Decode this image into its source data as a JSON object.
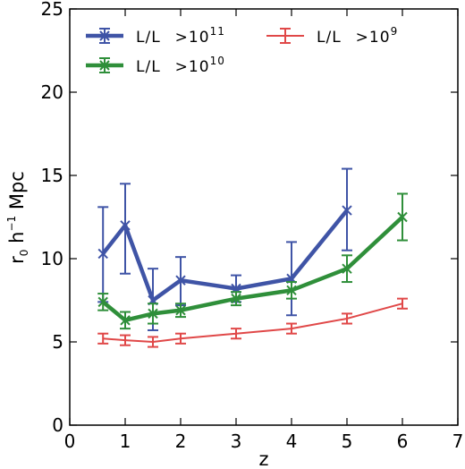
{
  "chart_data": {
    "type": "line",
    "xlabel": "z",
    "ylabel": "r",
    "ylabel_sub": "0",
    "ylabel_rest": " h",
    "ylabel_sup": "−1",
    "ylabel_unit": " Mpc",
    "xlim": [
      0,
      7
    ],
    "ylim": [
      0,
      25
    ],
    "xticks": [
      "0",
      "1",
      "2",
      "3",
      "4",
      "5",
      "6",
      "7"
    ],
    "yticks": [
      "0",
      "5",
      "10",
      "15",
      "20",
      "25"
    ],
    "grid": false,
    "legend_position": "top",
    "series": [
      {
        "name_main": "L/L",
        "name_sep": ">10",
        "name_exp": "11",
        "color": "#3f54a6",
        "line_width": 4.5,
        "marker": "x",
        "x": [
          0.6,
          1.0,
          1.5,
          2.0,
          3.0,
          4.0,
          5.0
        ],
        "y": [
          10.3,
          12.0,
          7.5,
          8.7,
          8.2,
          8.8,
          12.9
        ],
        "err_low": [
          2.9,
          2.9,
          1.8,
          1.5,
          0.8,
          2.2,
          2.4
        ],
        "err_high": [
          2.8,
          2.5,
          1.9,
          1.4,
          0.8,
          2.2,
          2.5
        ]
      },
      {
        "name_main": "L/L",
        "name_sep": ">10",
        "name_exp": "10",
        "color": "#2f8f3a",
        "line_width": 4.5,
        "marker": "x",
        "x": [
          0.6,
          1.0,
          1.5,
          2.0,
          3.0,
          4.0,
          5.0,
          6.0
        ],
        "y": [
          7.4,
          6.3,
          6.7,
          6.9,
          7.6,
          8.1,
          9.4,
          12.5
        ],
        "err_low": [
          0.5,
          0.5,
          0.6,
          0.4,
          0.4,
          0.5,
          0.8,
          1.4
        ],
        "err_high": [
          0.5,
          0.5,
          0.6,
          0.4,
          0.4,
          0.5,
          0.8,
          1.4
        ]
      },
      {
        "name_main": "L/L",
        "name_sep": ">10",
        "name_exp": "9",
        "color": "#e04848",
        "line_width": 2,
        "marker": "none",
        "x": [
          0.6,
          1.0,
          1.5,
          2.0,
          3.0,
          4.0,
          5.0,
          6.0
        ],
        "y": [
          5.2,
          5.1,
          5.0,
          5.2,
          5.5,
          5.8,
          6.4,
          7.3
        ],
        "err_low": [
          0.3,
          0.3,
          0.3,
          0.3,
          0.3,
          0.3,
          0.3,
          0.3
        ],
        "err_high": [
          0.3,
          0.3,
          0.3,
          0.3,
          0.3,
          0.3,
          0.3,
          0.3
        ]
      }
    ]
  }
}
